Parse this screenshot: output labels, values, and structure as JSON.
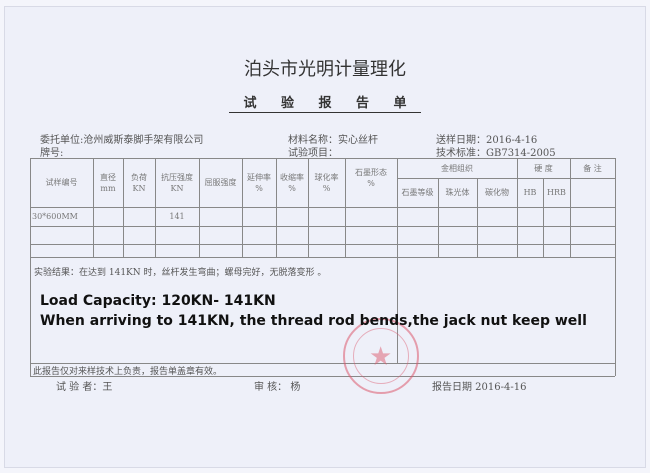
{
  "header": {
    "org": "泊头市光明计量理化",
    "title": "试 验 报 告 单"
  },
  "info": {
    "client": "委托单位:沧州威斯泰脚手架有限公司",
    "brand": "牌号:",
    "material": "材料名称：实心丝杆",
    "test_item": "试验项目：",
    "send_date": "送样日期：2016-4-16",
    "standard": "技术标准：GB7314-2005"
  },
  "table": {
    "headers": [
      "试样编号",
      "直径\nmm",
      "负荷\nKN",
      "抗压强度\nKN",
      "屈服强度",
      "延伸率\n%",
      "收缩率\n%",
      "球化率\n%",
      "石墨形态\n%",
      "金相组织",
      "硬 度",
      "备 注"
    ],
    "sub_headers": [
      "石墨等级",
      "珠光体",
      "碳化物",
      "HB",
      "HRB"
    ],
    "rows": [
      {
        "id": "30*600MM",
        "strength": "141"
      }
    ]
  },
  "result": "实验结果：在达到 141KN 时，丝杆发生弯曲；螺母完好，无脱落变形 。",
  "overlay": {
    "line1": "Load Capacity: 120KN- 141KN",
    "line2": "When arriving to 141KN, the thread rod bends,the jack nut keep well"
  },
  "note": "此报告仅对来样技术上负责，报告单盖章有效。",
  "footer": {
    "tester": "试 验 者：王",
    "reviewer": "审 核： 杨",
    "report_date": "报告日期  2016-4-16"
  },
  "stamp_color": "#dc5a6e"
}
